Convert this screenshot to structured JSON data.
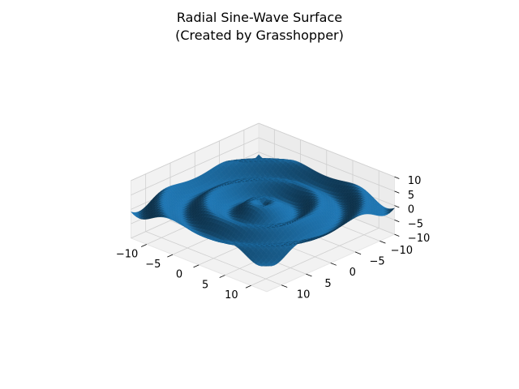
{
  "chart_data": {
    "type": "surface3d",
    "title": "Radial Sine-Wave Surface\n(Created by Grasshopper)",
    "title_lines": [
      "Radial Sine-Wave Surface",
      "(Created by Grasshopper)"
    ],
    "xlabel": "",
    "ylabel": "",
    "zlabel": "",
    "xlim": [
      -13,
      13
    ],
    "ylim": [
      -13,
      13
    ],
    "zlim": [
      -10,
      10
    ],
    "xticks": [
      -10,
      -5,
      0,
      5,
      10
    ],
    "yticks": [
      -10,
      -5,
      0,
      5,
      10
    ],
    "zticks": [
      -10,
      -5,
      0,
      5,
      10
    ],
    "xtick_labels": [
      "−10",
      "−5",
      "0",
      "5",
      "10"
    ],
    "ytick_labels": [
      "−10",
      "−5",
      "0",
      "5",
      "10"
    ],
    "ztick_labels": [
      "−10",
      "−5",
      "0",
      "5",
      "10"
    ],
    "surface": {
      "function": "z = 2*sin(sqrt(x^2 + y^2))",
      "amplitude": 2,
      "x_range": [
        -13,
        13
      ],
      "y_range": [
        -13,
        13
      ],
      "grid_points": 52,
      "color": "#1f77b4"
    },
    "grid": true,
    "view": {
      "elevation_deg": 30,
      "azimuth_deg": -60
    }
  }
}
